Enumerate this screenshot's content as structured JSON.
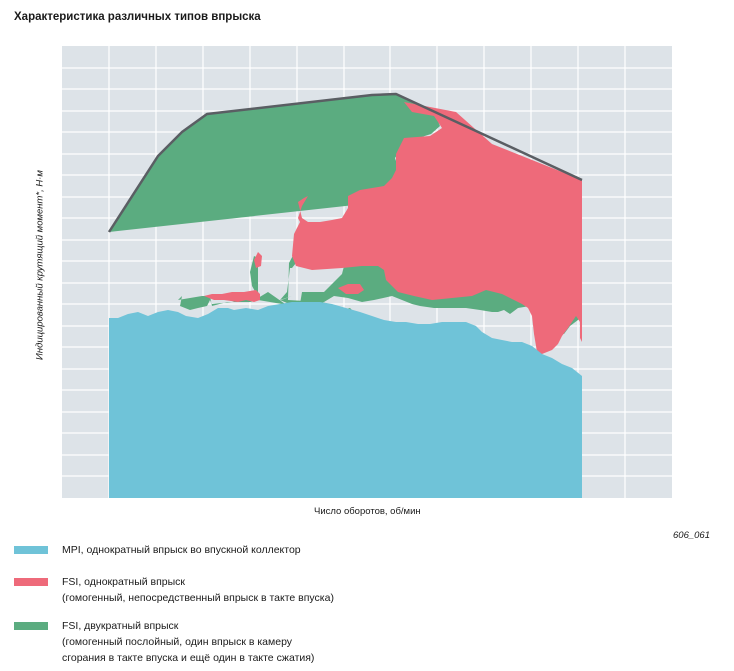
{
  "title": "Характеристика различных типов впрыска",
  "ylabel": "Индицированный крутящий момент*, Н·м",
  "xlabel": "Число оборотов, об/мин",
  "figure_code": "606_061",
  "colors": {
    "background": "#dde3e8",
    "grid": "#ffffff",
    "mpi": "#6fc3d8",
    "fsi_single": "#ee6a7a",
    "fsi_double": "#5bac80",
    "outline": "#5a5e63"
  },
  "legend": [
    {
      "color": "#6fc3d8",
      "lines": [
        "MPI, однократный впрыск во впускной коллектор"
      ]
    },
    {
      "color": "#ee6a7a",
      "lines": [
        "FSI, однократный впрыск",
        "(гомогенный, непосредственный впрыск в такте впуска)"
      ]
    },
    {
      "color": "#5bac80",
      "lines": [
        "FSI, двукратный впрыск",
        "(гомогенный послойный, один впрыск в камеру",
        "сгорания в такте впуска и ещё один в такте сжатия)"
      ]
    }
  ]
}
